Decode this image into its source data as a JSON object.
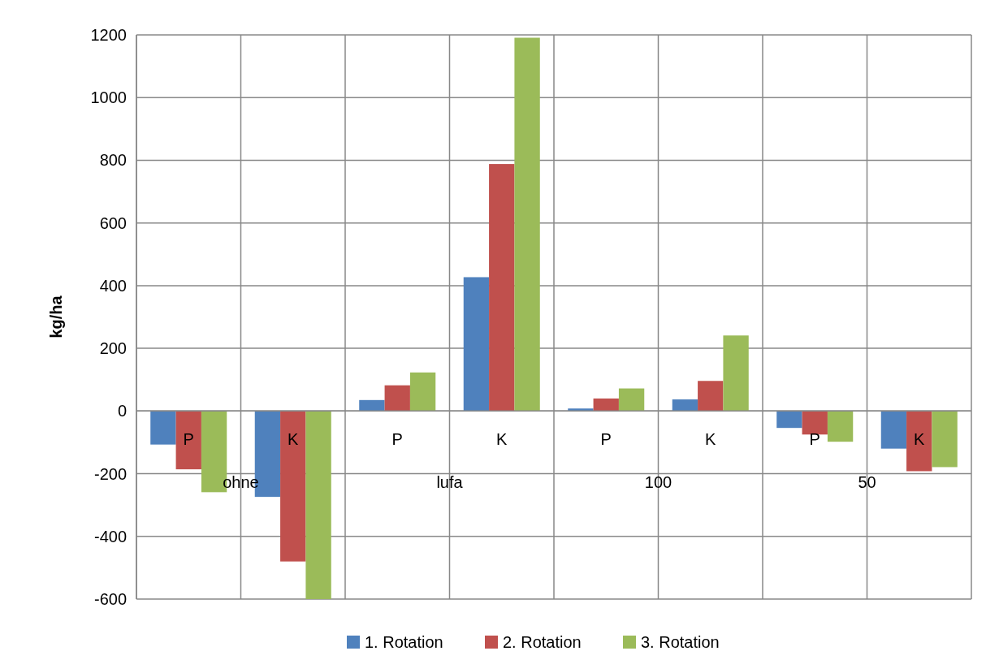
{
  "chart_data": {
    "type": "bar",
    "ylabel": "kg/ha",
    "categories": [
      "P",
      "K",
      "P",
      "K",
      "P",
      "K",
      "P",
      "K"
    ],
    "annotations": [
      "ohne",
      "lufa",
      "100",
      "50"
    ],
    "series": [
      {
        "name": "1. Rotation",
        "color": "#4f81bd",
        "values": [
          -107,
          -274,
          35,
          427,
          8,
          37,
          -54,
          -120
        ]
      },
      {
        "name": "2. Rotation",
        "color": "#c0504d",
        "values": [
          -186,
          -480,
          82,
          788,
          40,
          96,
          -75,
          -192
        ]
      },
      {
        "name": "3. Rotation",
        "color": "#9bbb59",
        "values": [
          -259,
          -600,
          123,
          1191,
          72,
          241,
          -98,
          -179
        ]
      }
    ],
    "ylim": [
      -600,
      1200
    ],
    "yticks": [
      -600,
      -400,
      -200,
      0,
      200,
      400,
      600,
      800,
      1000,
      1200
    ],
    "grid": true,
    "legend": "bottom"
  }
}
